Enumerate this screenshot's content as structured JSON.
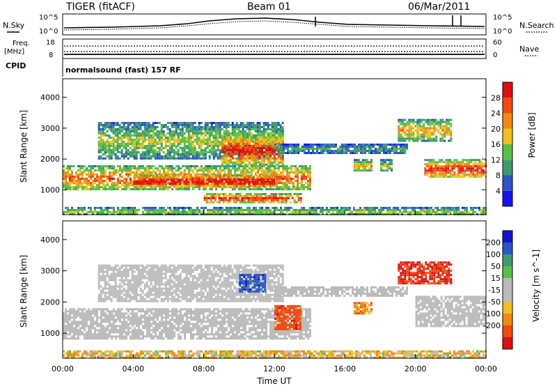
{
  "header": {
    "station": "TIGER (fitACF)",
    "beam": "Beam 01",
    "date": "06/Mar/2011"
  },
  "noise_panel": {
    "left_label": "N.Sky",
    "right_label": "N.Search",
    "left_ticks": [
      "10^5",
      "10^0"
    ],
    "right_ticks": [
      "10^5",
      "10^0"
    ]
  },
  "freq_panel": {
    "left_label_1": "Freq.",
    "left_label_2": "[MHz]",
    "right_label": "Nave",
    "left_ticks": [
      "18",
      "8"
    ],
    "right_ticks": [
      "60",
      "0"
    ]
  },
  "cpid": {
    "label": "CPID",
    "value": "normalsound (fast) 157 RF"
  },
  "colors": {
    "scale": [
      "#1414f0",
      "#2a55c8",
      "#3c9a6e",
      "#59c045",
      "#f0c020",
      "#f08a10",
      "#f04a10",
      "#e01010"
    ],
    "velocity": [
      "#e01010",
      "#f04a10",
      "#f08a10",
      "#f0c020",
      "#bbbbbb",
      "#bbbbbb",
      "#59c045",
      "#3c9a6e",
      "#2a55c8",
      "#1414d0"
    ],
    "ground_scatter": "#bbbbbb"
  },
  "chart_data": [
    {
      "type": "heatmap",
      "title": "",
      "xlabel": "Time UT",
      "ylabel": "Slant Range [km]",
      "xlim": [
        0,
        24
      ],
      "ylim": [
        200,
        4600
      ],
      "x_tick_labels": [
        "00:00",
        "04:00",
        "08:00",
        "12:00",
        "16:00",
        "20:00",
        "00:00"
      ],
      "y_tick_labels": [
        "1000",
        "2000",
        "3000",
        "4000"
      ],
      "y_ticks": [
        1000,
        2000,
        3000,
        4000
      ],
      "colorbar": {
        "label": "Power [dB]",
        "ticks": [
          "4",
          "8",
          "12",
          "16",
          "20",
          "24",
          "28"
        ],
        "range": [
          0,
          32
        ]
      },
      "scatter_regions": [
        {
          "t0": 0.0,
          "t1": 14.0,
          "r0": 1000,
          "r1": 1800,
          "level": 5
        },
        {
          "t0": 4.0,
          "t1": 12.0,
          "r0": 1100,
          "r1": 1500,
          "level": 7
        },
        {
          "t0": 8.0,
          "t1": 13.5,
          "r0": 600,
          "r1": 900,
          "level": 6
        },
        {
          "t0": 2.0,
          "t1": 12.5,
          "r0": 2000,
          "r1": 3200,
          "level": 3
        },
        {
          "t0": 9.0,
          "t1": 12.5,
          "r0": 1800,
          "r1": 2800,
          "level": 6
        },
        {
          "t0": 12.0,
          "t1": 19.5,
          "r0": 2200,
          "r1": 2500,
          "level": 2
        },
        {
          "t0": 16.5,
          "t1": 17.5,
          "r0": 1600,
          "r1": 2000,
          "level": 4
        },
        {
          "t0": 18.0,
          "t1": 18.7,
          "r0": 1600,
          "r1": 2000,
          "level": 3
        },
        {
          "t0": 19.0,
          "t1": 22.0,
          "r0": 2600,
          "r1": 3300,
          "level": 4
        },
        {
          "t0": 20.5,
          "t1": 24.0,
          "r0": 1400,
          "r1": 2000,
          "level": 6
        },
        {
          "t0": 0.0,
          "t1": 24.0,
          "r0": 200,
          "r1": 450,
          "level": 3
        }
      ]
    },
    {
      "type": "heatmap",
      "title": "",
      "xlabel": "Time UT",
      "ylabel": "Slant Range [km]",
      "xlim": [
        0,
        24
      ],
      "ylim": [
        200,
        4600
      ],
      "x_tick_labels": [
        "00:00",
        "04:00",
        "08:00",
        "12:00",
        "16:00",
        "20:00",
        "00:00"
      ],
      "y_tick_labels": [
        "1000",
        "2000",
        "3000",
        "4000"
      ],
      "y_ticks": [
        1000,
        2000,
        3000,
        4000
      ],
      "colorbar": {
        "label": "Velocity [m s^-1]",
        "ticks": [
          "200",
          "100",
          "50",
          "15",
          "-15",
          "-50",
          "-100",
          "-200"
        ],
        "range": [
          -250,
          250
        ]
      },
      "scatter_regions": [
        {
          "t0": 0.0,
          "t1": 14.0,
          "r0": 800,
          "r1": 1800,
          "velocity": 0
        },
        {
          "t0": 2.0,
          "t1": 12.5,
          "r0": 2000,
          "r1": 3200,
          "velocity": 0
        },
        {
          "t0": 10.0,
          "t1": 11.5,
          "r0": 2300,
          "r1": 2900,
          "velocity": 150
        },
        {
          "t0": 12.0,
          "t1": 13.5,
          "r0": 1100,
          "r1": 1900,
          "velocity": -150
        },
        {
          "t0": 12.0,
          "t1": 19.5,
          "r0": 2200,
          "r1": 2500,
          "velocity": 0
        },
        {
          "t0": 16.5,
          "t1": 17.5,
          "r0": 1600,
          "r1": 2000,
          "velocity": -80
        },
        {
          "t0": 19.0,
          "t1": 22.0,
          "r0": 2600,
          "r1": 3300,
          "velocity": -200
        },
        {
          "t0": 20.0,
          "t1": 24.0,
          "r0": 1200,
          "r1": 2200,
          "velocity": 0
        },
        {
          "t0": 0.0,
          "t1": 24.0,
          "r0": 200,
          "r1": 450,
          "velocity": -30
        }
      ]
    }
  ]
}
